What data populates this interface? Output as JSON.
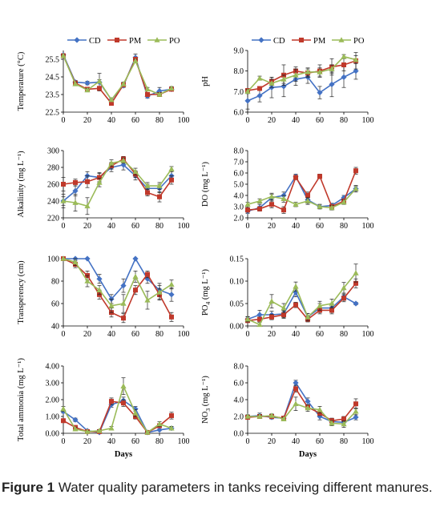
{
  "caption": {
    "label": "Figure 1",
    "text": "Water quality parameters in tanks receiving different manures."
  },
  "colors": {
    "CD": "#4472C4",
    "PM": "#C0392B",
    "PO": "#9BBB59"
  },
  "chart_data": [
    {
      "type": "line",
      "ylabel": "Temperature (°C)",
      "xlabel": "",
      "xlim": [
        0,
        100
      ],
      "xticks": [
        0,
        20,
        40,
        60,
        80,
        100
      ],
      "ylim": [
        22.5,
        26.0
      ],
      "yticks": [
        22.5,
        23.5,
        24.5,
        25.5
      ],
      "legend": "top",
      "x": [
        0,
        10,
        20,
        30,
        40,
        50,
        60,
        70,
        80,
        90
      ],
      "series": [
        {
          "name": "CD",
          "marker": "diamond",
          "values": [
            25.75,
            24.2,
            24.15,
            24.2,
            23.2,
            24.0,
            25.6,
            23.4,
            23.7,
            23.8
          ],
          "err": [
            0.05,
            0.1,
            0.1,
            0.5,
            0.1,
            0.1,
            0.2,
            0.1,
            0.2,
            0.1
          ]
        },
        {
          "name": "PM",
          "marker": "square",
          "values": [
            25.7,
            24.15,
            23.8,
            23.85,
            23.0,
            24.05,
            25.5,
            23.5,
            23.5,
            23.8
          ],
          "err": [
            0.05,
            0.1,
            0.1,
            0.1,
            0.1,
            0.1,
            0.1,
            0.1,
            0.1,
            0.1
          ]
        },
        {
          "name": "PO",
          "marker": "triangle",
          "values": [
            25.7,
            24.1,
            23.75,
            24.25,
            23.2,
            24.1,
            25.4,
            23.8,
            23.5,
            23.85
          ],
          "err": [
            0.05,
            0.1,
            0.1,
            0.1,
            0.1,
            0.1,
            0.1,
            0.1,
            0.1,
            0.1
          ]
        }
      ]
    },
    {
      "type": "line",
      "ylabel": "pH",
      "xlabel": "",
      "xlim": [
        0,
        100
      ],
      "xticks": [
        0,
        20,
        40,
        60,
        80,
        100
      ],
      "ylim": [
        6.0,
        9.0
      ],
      "yticks": [
        6.0,
        7.0,
        8.0,
        9.0
      ],
      "legend": "top",
      "x": [
        0,
        10,
        20,
        30,
        40,
        50,
        60,
        70,
        80,
        90
      ],
      "series": [
        {
          "name": "CD",
          "marker": "diamond",
          "values": [
            6.55,
            6.8,
            7.2,
            7.25,
            7.6,
            7.7,
            6.95,
            7.35,
            7.7,
            8.0
          ],
          "err": [
            0.4,
            0.3,
            0.5,
            0.5,
            0.3,
            0.3,
            0.3,
            0.6,
            0.5,
            0.4
          ]
        },
        {
          "name": "PM",
          "marker": "square",
          "values": [
            7.05,
            7.15,
            7.5,
            7.8,
            8.0,
            7.9,
            8.0,
            8.2,
            8.3,
            8.5
          ],
          "err": [
            0.1,
            0.1,
            0.2,
            0.5,
            0.2,
            0.2,
            0.3,
            0.4,
            0.3,
            0.4
          ]
        },
        {
          "name": "PO",
          "marker": "triangle",
          "values": [
            7.0,
            7.65,
            7.4,
            7.6,
            7.8,
            7.95,
            7.95,
            8.1,
            8.7,
            8.55
          ],
          "err": [
            0.1,
            0.1,
            0.2,
            0.2,
            0.3,
            0.2,
            0.2,
            0.2,
            0.1,
            0.2
          ]
        }
      ]
    },
    {
      "type": "line",
      "ylabel": "Alkalinity (mg L⁻¹)",
      "xlabel": "",
      "xlim": [
        0,
        100
      ],
      "xticks": [
        0,
        20,
        40,
        60,
        80,
        100
      ],
      "ylim": [
        220,
        300
      ],
      "yticks": [
        220,
        240,
        260,
        280,
        300
      ],
      "legend": "none",
      "x": [
        0,
        10,
        20,
        30,
        40,
        50,
        60,
        70,
        80,
        90
      ],
      "series": [
        {
          "name": "CD",
          "marker": "diamond",
          "values": [
            240,
            252,
            270,
            268,
            280,
            283,
            270,
            255,
            255,
            270
          ],
          "err": [
            5,
            6,
            5,
            6,
            5,
            6,
            5,
            5,
            5,
            5
          ]
        },
        {
          "name": "PM",
          "marker": "square",
          "values": [
            260,
            262,
            263,
            268,
            282,
            290,
            272,
            250,
            245,
            265
          ],
          "err": [
            8,
            4,
            7,
            5,
            4,
            3,
            4,
            4,
            6,
            5
          ]
        },
        {
          "name": "PO",
          "marker": "triangle",
          "values": [
            240,
            238,
            234,
            262,
            285,
            288,
            275,
            258,
            258,
            278
          ],
          "err": [
            8,
            10,
            10,
            5,
            4,
            3,
            4,
            4,
            4,
            3
          ]
        }
      ]
    },
    {
      "type": "line",
      "ylabel": "DO (mg L⁻¹)",
      "xlabel": "",
      "xlim": [
        0,
        100
      ],
      "xticks": [
        0,
        20,
        40,
        60,
        80,
        100
      ],
      "ylim": [
        2.0,
        8.0
      ],
      "yticks": [
        2.0,
        3.0,
        4.0,
        5.0,
        6.0,
        7.0,
        8.0
      ],
      "legend": "none",
      "x": [
        0,
        10,
        20,
        30,
        40,
        50,
        60,
        70,
        80,
        90
      ],
      "series": [
        {
          "name": "CD",
          "marker": "diamond",
          "values": [
            2.6,
            2.9,
            3.8,
            4.0,
            5.7,
            3.6,
            3.0,
            3.1,
            3.8,
            4.6
          ],
          "err": [
            0.2,
            0.3,
            0.3,
            0.3,
            0.2,
            0.3,
            0.2,
            0.2,
            0.2,
            0.2
          ]
        },
        {
          "name": "PM",
          "marker": "square",
          "values": [
            2.7,
            2.8,
            3.2,
            2.7,
            5.6,
            4.0,
            5.7,
            3.0,
            3.5,
            6.2
          ],
          "err": [
            0.2,
            0.2,
            0.3,
            0.3,
            0.2,
            0.3,
            0.2,
            0.2,
            0.2,
            0.3
          ]
        },
        {
          "name": "PO",
          "marker": "triangle",
          "values": [
            3.2,
            3.5,
            3.9,
            3.7,
            3.2,
            3.5,
            3.0,
            2.9,
            3.4,
            4.6
          ],
          "err": [
            0.2,
            0.2,
            0.3,
            0.3,
            0.2,
            0.3,
            0.2,
            0.2,
            0.2,
            0.3
          ]
        }
      ]
    },
    {
      "type": "line",
      "ylabel": "Transperency (cm)",
      "xlabel": "",
      "xlim": [
        0,
        100
      ],
      "xticks": [
        0,
        20,
        40,
        60,
        80,
        100
      ],
      "ylim": [
        40,
        100
      ],
      "yticks": [
        40,
        60,
        80,
        100
      ],
      "legend": "none",
      "x": [
        0,
        10,
        20,
        30,
        40,
        50,
        60,
        70,
        80,
        90
      ],
      "series": [
        {
          "name": "CD",
          "marker": "diamond",
          "values": [
            100,
            100,
            100,
            82,
            64,
            76,
            100,
            82,
            72,
            68
          ],
          "err": [
            0,
            0,
            0,
            4,
            4,
            6,
            0,
            4,
            6,
            6
          ]
        },
        {
          "name": "PM",
          "marker": "square",
          "values": [
            100,
            95,
            85,
            68,
            52,
            47,
            72,
            86,
            68,
            48
          ],
          "err": [
            0,
            3,
            4,
            4,
            4,
            4,
            4,
            3,
            5,
            4
          ]
        },
        {
          "name": "PO",
          "marker": "triangle",
          "values": [
            100,
            97,
            80,
            72,
            58,
            60,
            84,
            63,
            70,
            77
          ],
          "err": [
            0,
            3,
            5,
            4,
            6,
            8,
            5,
            8,
            6,
            4
          ]
        }
      ]
    },
    {
      "type": "line",
      "ylabel": "PO4 (mg L⁻¹)",
      "xlabel": "",
      "xlim": [
        0,
        100
      ],
      "xticks": [
        0,
        20,
        40,
        60,
        80,
        100
      ],
      "ylim": [
        0.0,
        0.15
      ],
      "yticks": [
        0.0,
        0.05,
        0.1,
        0.15
      ],
      "yticklabels": [
        "0.00",
        "0.05",
        "0.10",
        "0.15"
      ],
      "legend": "none",
      "x": [
        0,
        10,
        20,
        30,
        40,
        50,
        60,
        70,
        80,
        90
      ],
      "series": [
        {
          "name": "CD",
          "marker": "diamond",
          "values": [
            0.015,
            0.025,
            0.025,
            0.027,
            0.075,
            0.02,
            0.04,
            0.04,
            0.065,
            0.05
          ],
          "err": [
            0.005,
            0.01,
            0.008,
            0.008,
            0.01,
            0.008,
            0.01,
            0.01,
            0.008,
            0.003
          ]
        },
        {
          "name": "PM",
          "marker": "square",
          "values": [
            0.012,
            0.015,
            0.02,
            0.025,
            0.047,
            0.015,
            0.035,
            0.035,
            0.062,
            0.095
          ],
          "err": [
            0.004,
            0.005,
            0.006,
            0.008,
            0.006,
            0.006,
            0.008,
            0.008,
            0.008,
            0.01
          ]
        },
        {
          "name": "PO",
          "marker": "triangle",
          "values": [
            0.015,
            0.003,
            0.055,
            0.04,
            0.088,
            0.02,
            0.045,
            0.05,
            0.085,
            0.118
          ],
          "err": [
            0.006,
            0.005,
            0.015,
            0.01,
            0.01,
            0.008,
            0.01,
            0.01,
            0.012,
            0.02
          ]
        }
      ]
    },
    {
      "type": "line",
      "ylabel": "Total ammonia (mg L⁻¹)",
      "xlabel": "Days",
      "xlim": [
        0,
        100
      ],
      "xticks": [
        0,
        20,
        40,
        60,
        80,
        100
      ],
      "ylim": [
        0.0,
        4.0
      ],
      "yticks": [
        0.0,
        1.0,
        2.0,
        3.0,
        4.0
      ],
      "yticklabels": [
        "0.00",
        "1.00",
        "2.00",
        "3.00",
        "4.00"
      ],
      "legend": "none",
      "x": [
        0,
        10,
        20,
        30,
        40,
        50,
        60,
        70,
        80,
        90
      ],
      "series": [
        {
          "name": "CD",
          "marker": "diamond",
          "values": [
            1.3,
            0.8,
            0.15,
            0.05,
            1.7,
            1.95,
            1.45,
            0.05,
            0.2,
            0.3
          ],
          "err": [
            0.1,
            0.1,
            0.05,
            0.05,
            0.15,
            0.2,
            0.15,
            0.05,
            0.05,
            0.1
          ]
        },
        {
          "name": "PM",
          "marker": "square",
          "values": [
            0.75,
            0.35,
            0.1,
            0.1,
            1.9,
            1.8,
            1.0,
            0.05,
            0.45,
            1.05
          ],
          "err": [
            0.1,
            0.1,
            0.05,
            0.05,
            0.2,
            0.2,
            0.15,
            0.05,
            0.1,
            0.2
          ]
        },
        {
          "name": "PO",
          "marker": "triangle",
          "values": [
            1.45,
            0.25,
            0.1,
            0.15,
            0.3,
            2.8,
            1.2,
            0.05,
            0.55,
            0.3
          ],
          "err": [
            0.15,
            0.1,
            0.05,
            0.05,
            0.1,
            0.5,
            0.2,
            0.05,
            0.15,
            0.1
          ]
        }
      ]
    },
    {
      "type": "line",
      "ylabel": "NO3 (mg L⁻¹)",
      "xlabel": "Days",
      "xlim": [
        0,
        100
      ],
      "xticks": [
        0,
        20,
        40,
        60,
        80,
        100
      ],
      "ylim": [
        0.0,
        8.0
      ],
      "yticks": [
        0.0,
        2.0,
        4.0,
        6.0,
        8.0
      ],
      "legend": "none",
      "x": [
        0,
        10,
        20,
        30,
        40,
        50,
        60,
        70,
        80,
        90
      ],
      "series": [
        {
          "name": "CD",
          "marker": "diamond",
          "values": [
            2.0,
            2.1,
            1.9,
            1.8,
            6.0,
            3.8,
            2.0,
            1.4,
            1.3,
            1.9
          ],
          "err": [
            0.2,
            0.3,
            0.2,
            0.2,
            0.3,
            0.4,
            0.4,
            0.3,
            0.3,
            0.3
          ]
        },
        {
          "name": "PM",
          "marker": "square",
          "values": [
            1.9,
            2.0,
            2.0,
            1.8,
            5.3,
            3.1,
            2.4,
            1.5,
            1.7,
            3.5
          ],
          "err": [
            0.2,
            0.2,
            0.2,
            0.2,
            0.4,
            0.3,
            0.3,
            0.3,
            0.3,
            0.6
          ]
        },
        {
          "name": "PO",
          "marker": "triangle",
          "values": [
            2.0,
            2.0,
            2.1,
            1.7,
            3.5,
            3.0,
            2.8,
            1.2,
            1.1,
            2.6
          ],
          "err": [
            0.2,
            0.2,
            0.2,
            0.2,
            0.8,
            0.4,
            0.4,
            0.3,
            0.4,
            0.4
          ]
        }
      ]
    }
  ]
}
